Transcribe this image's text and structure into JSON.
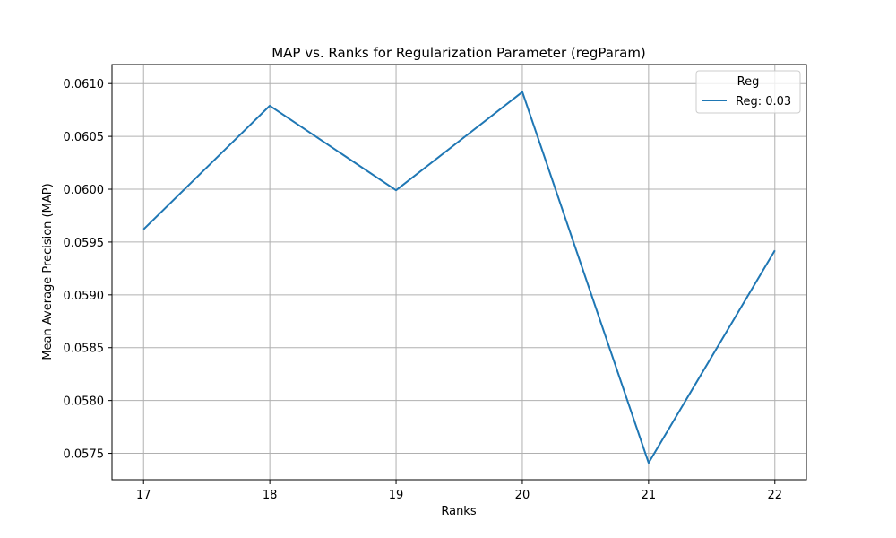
{
  "chart_data": {
    "type": "line",
    "title": "MAP vs. Ranks for Regularization Parameter (regParam)",
    "xlabel": "Ranks",
    "ylabel": "Mean Average Precision (MAP)",
    "x": [
      17,
      18,
      19,
      20,
      21,
      22
    ],
    "x_ticks": [
      "17",
      "18",
      "19",
      "20",
      "21",
      "22"
    ],
    "y_ticks": [
      "0.0575",
      "0.0580",
      "0.0585",
      "0.0590",
      "0.0595",
      "0.0600",
      "0.0605",
      "0.0610"
    ],
    "xlim": [
      16.75,
      22.25
    ],
    "ylim": [
      0.05725,
      0.06118
    ],
    "grid": true,
    "legend": {
      "title": "Reg",
      "position": "top-right"
    },
    "series": [
      {
        "name": "Reg: 0.03",
        "color": "#1f77b4",
        "values": [
          0.05962,
          0.06079,
          0.05999,
          0.06092,
          0.05741,
          0.05942
        ]
      }
    ]
  }
}
